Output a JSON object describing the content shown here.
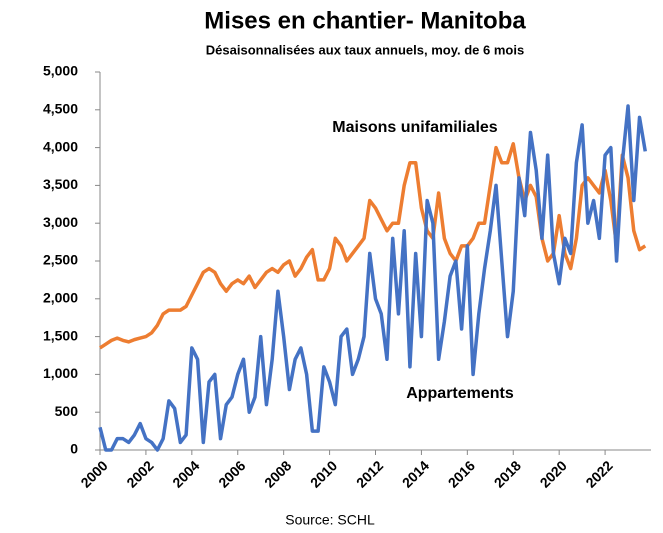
{
  "chart_data": {
    "type": "line",
    "title": "Mises en chantier- Manitoba",
    "subtitle": "Désaisonnalisées aux taux annuels, moy. de 6 mois",
    "source": "Source: SCHL",
    "xlim": [
      2000,
      2024
    ],
    "xticks": [
      2000,
      2002,
      2004,
      2006,
      2008,
      2010,
      2012,
      2014,
      2016,
      2018,
      2020,
      2022
    ],
    "ylim": [
      0,
      5000
    ],
    "yticks": [
      0,
      500,
      {
        "value": 1000,
        "label": "1,000"
      },
      {
        "value": 1500,
        "label": "1,500"
      },
      {
        "value": 2000,
        "label": "2,000"
      },
      {
        "value": 2500,
        "label": "2,500"
      },
      {
        "value": 3000,
        "label": "3,000"
      },
      {
        "value": 3500,
        "label": "3,500"
      },
      {
        "value": 4000,
        "label": "4,000"
      },
      {
        "value": 4500,
        "label": "4,500"
      },
      {
        "value": 5000,
        "label": "5,000"
      }
    ],
    "grid": false,
    "x": [
      2000,
      2000.25,
      2000.5,
      2000.75,
      2001,
      2001.25,
      2001.5,
      2001.75,
      2002,
      2002.25,
      2002.5,
      2002.75,
      2003,
      2003.25,
      2003.5,
      2003.75,
      2004,
      2004.25,
      2004.5,
      2004.75,
      2005,
      2005.25,
      2005.5,
      2005.75,
      2006,
      2006.25,
      2006.5,
      2006.75,
      2007,
      2007.25,
      2007.5,
      2007.75,
      2008,
      2008.25,
      2008.5,
      2008.75,
      2009,
      2009.25,
      2009.5,
      2009.75,
      2010,
      2010.25,
      2010.5,
      2010.75,
      2011,
      2011.25,
      2011.5,
      2011.75,
      2012,
      2012.25,
      2012.5,
      2012.75,
      2013,
      2013.25,
      2013.5,
      2013.75,
      2014,
      2014.25,
      2014.5,
      2014.75,
      2015,
      2015.25,
      2015.5,
      2015.75,
      2016,
      2016.25,
      2016.5,
      2016.75,
      2017,
      2017.25,
      2017.5,
      2017.75,
      2018,
      2018.25,
      2018.5,
      2018.75,
      2019,
      2019.25,
      2019.5,
      2019.75,
      2020,
      2020.25,
      2020.5,
      2020.75,
      2021,
      2021.25,
      2021.5,
      2021.75,
      2022,
      2022.25,
      2022.5,
      2022.75,
      2023,
      2023.25,
      2023.5,
      2023.75
    ],
    "series": [
      {
        "name": "Maisons unifamiliales",
        "color": "#ed7d31",
        "values": [
          1350,
          1400,
          1450,
          1480,
          1450,
          1430,
          1460,
          1480,
          1500,
          1550,
          1650,
          1800,
          1850,
          1850,
          1850,
          1900,
          2050,
          2200,
          2350,
          2400,
          2350,
          2200,
          2100,
          2200,
          2250,
          2200,
          2300,
          2150,
          2250,
          2350,
          2400,
          2350,
          2450,
          2500,
          2300,
          2400,
          2550,
          2650,
          2250,
          2250,
          2400,
          2800,
          2700,
          2500,
          2600,
          2700,
          2800,
          3300,
          3200,
          3050,
          2900,
          3000,
          3000,
          3500,
          3800,
          3800,
          3200,
          2900,
          2800,
          3400,
          2800,
          2600,
          2500,
          2700,
          2700,
          2800,
          3000,
          3000,
          3500,
          4000,
          3800,
          3800,
          4050,
          3600,
          3300,
          3500,
          3350,
          2800,
          2500,
          2600,
          3100,
          2600,
          2400,
          2800,
          3500,
          3600,
          3500,
          3400,
          3700,
          3300,
          2700,
          3900,
          3600,
          2900,
          2650,
          2700
        ]
      },
      {
        "name": "Appartements",
        "color": "#4472c4",
        "values": [
          300,
          0,
          0,
          150,
          150,
          100,
          200,
          350,
          150,
          100,
          0,
          150,
          650,
          550,
          100,
          200,
          1350,
          1200,
          100,
          900,
          1000,
          150,
          600,
          700,
          1000,
          1200,
          500,
          700,
          1500,
          600,
          1200,
          2100,
          1500,
          800,
          1200,
          1350,
          1000,
          250,
          250,
          1100,
          900,
          600,
          1500,
          1600,
          1000,
          1200,
          1500,
          2600,
          2000,
          1800,
          1200,
          2800,
          1800,
          2900,
          1100,
          2600,
          1500,
          3300,
          3000,
          1200,
          1700,
          2300,
          2500,
          1600,
          2700,
          1000,
          1800,
          2400,
          2900,
          3500,
          2500,
          1500,
          2100,
          3600,
          3100,
          4200,
          3700,
          2800,
          3900,
          2600,
          2200,
          2800,
          2600,
          3800,
          4300,
          3000,
          3300,
          2800,
          3900,
          4000,
          2500,
          3800,
          4550,
          3300,
          4400,
          3950
        ]
      }
    ]
  }
}
